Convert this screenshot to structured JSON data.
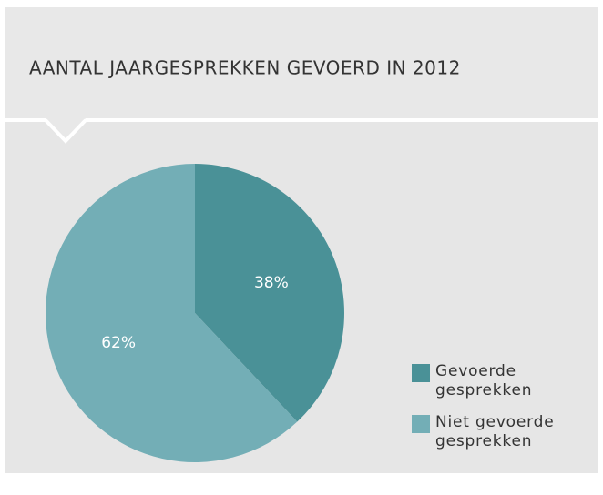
{
  "chart_data": {
    "type": "pie",
    "title": "AANTAL JAARGESPREKKEN GEVOERD IN 2012",
    "categories": [
      "Gevoerde gesprekken",
      "Niet gevoerde gesprekken"
    ],
    "values": [
      38,
      62
    ],
    "value_labels": [
      "38%",
      "62%"
    ],
    "colors": [
      "#4a9197",
      "#73aeb6"
    ]
  }
}
